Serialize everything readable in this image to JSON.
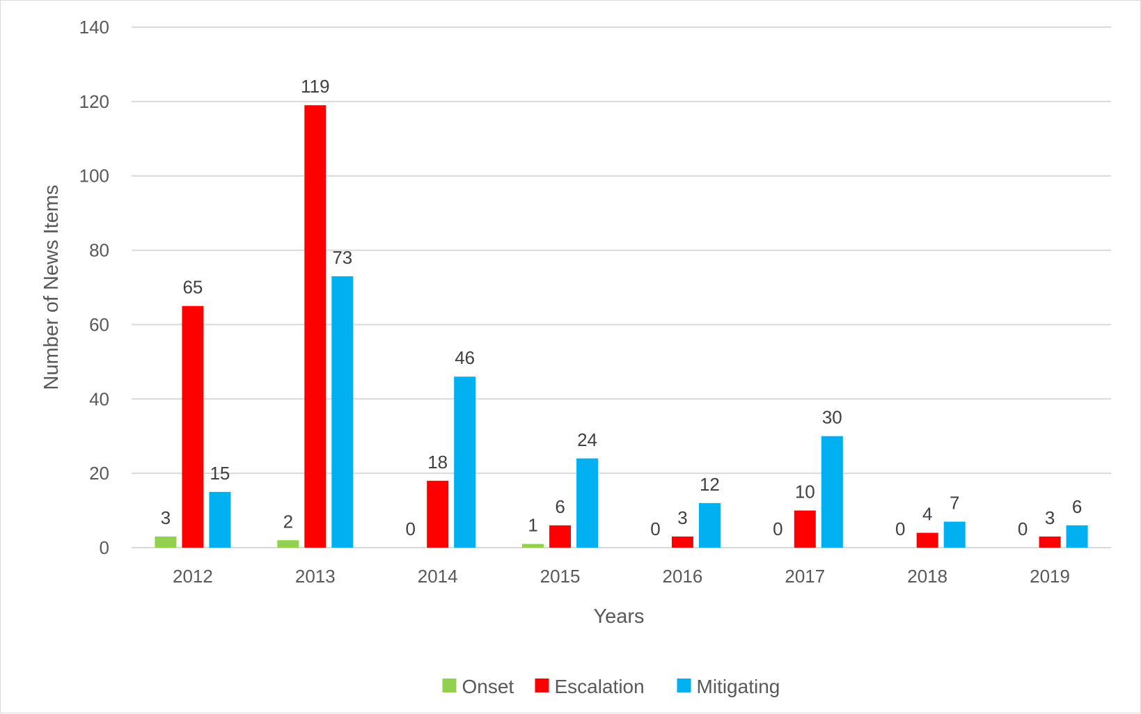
{
  "chart_data": {
    "type": "bar",
    "title": "",
    "xlabel": "Years",
    "ylabel": "Number of News Items",
    "categories": [
      "2012",
      "2013",
      "2014",
      "2015",
      "2016",
      "2017",
      "2018",
      "2019"
    ],
    "series": [
      {
        "name": "Onset",
        "color": "#92d050",
        "values": [
          3,
          2,
          0,
          1,
          0,
          0,
          0,
          0
        ]
      },
      {
        "name": "Escalation",
        "color": "#ff0000",
        "values": [
          65,
          119,
          18,
          6,
          3,
          10,
          4,
          3
        ]
      },
      {
        "name": "Mitigating",
        "color": "#00b0f0",
        "values": [
          15,
          73,
          46,
          24,
          12,
          30,
          7,
          6
        ]
      }
    ],
    "ylim": [
      0,
      140
    ],
    "yticks": [
      0,
      20,
      40,
      60,
      80,
      100,
      120,
      140
    ],
    "grid": true,
    "legend": "bottom",
    "data_labels": true
  }
}
